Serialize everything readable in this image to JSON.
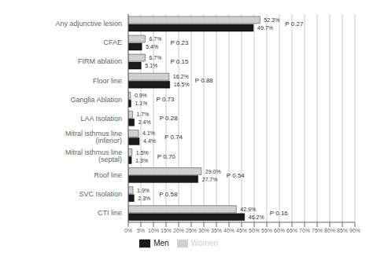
{
  "chart_data": {
    "type": "bar",
    "orientation": "horizontal",
    "categories": [
      "Any adjunctive lesion",
      "CFAE",
      "FIRM ablation",
      "Floor line",
      "Ganglia Ablation",
      "LAA Isolation",
      "Mitral isthmus line (inferior)",
      "Mitral isthmus line (septal)",
      "Roof line",
      "SVC Isolation",
      "CTI line"
    ],
    "series": [
      {
        "name": "Women",
        "color": "#d0d0d0",
        "values": [
          52.3,
          6.7,
          6.7,
          16.2,
          0.9,
          1.7,
          4.1,
          1.5,
          29.0,
          1.9,
          42.9
        ],
        "value_labels": [
          "52.3%",
          "6.7%",
          "6.7%",
          "16.2%",
          "0.9%",
          "1.7%",
          "4.1%",
          "1.5%",
          "29.0%",
          "1.9%",
          "42.9%"
        ]
      },
      {
        "name": "Men",
        "color": "#1a1a1a",
        "values": [
          49.7,
          5.4,
          5.1,
          16.5,
          1.1,
          2.4,
          4.4,
          1.3,
          27.7,
          2.3,
          46.2
        ],
        "value_labels": [
          "49.7%",
          "5.4%",
          "5.1%",
          "16.5%",
          "1.1%",
          "2.4%",
          "4.4%",
          "1.3%",
          "27.7%",
          "2.3%",
          "46.2%"
        ]
      }
    ],
    "annotations": [
      "P 0.27",
      "P 0.23",
      "P 0.15",
      "P 0.88",
      "P 0.73",
      "P 0.28",
      "P 0.74",
      "P 0.70",
      "P 0.54",
      "P 0.58",
      "P 0.16"
    ],
    "xlim": [
      0,
      90
    ],
    "xticks": [
      {
        "value": 0,
        "label": "0%"
      },
      {
        "value": 5,
        "label": "5%"
      },
      {
        "value": 10,
        "label": "10%"
      },
      {
        "value": 15,
        "label": "15%"
      },
      {
        "value": 20,
        "label": "20%"
      },
      {
        "value": 25,
        "label": "25%"
      },
      {
        "value": 30,
        "label": "30%"
      },
      {
        "value": 35,
        "label": "35%"
      },
      {
        "value": 40,
        "label": "40%"
      },
      {
        "value": 45,
        "label": "45%"
      },
      {
        "value": 50,
        "label": "50%"
      },
      {
        "value": 55,
        "label": "55%"
      },
      {
        "value": 60,
        "label": "60%"
      },
      {
        "value": 65,
        "label": "65%"
      },
      {
        "value": 70,
        "label": "70%"
      },
      {
        "value": 75,
        "label": "75%"
      },
      {
        "value": 80,
        "label": "80%"
      },
      {
        "value": 85,
        "label": "85%"
      },
      {
        "value": 90,
        "label": "90%"
      }
    ],
    "grid": true,
    "legend": "bottom",
    "data_labels": true
  }
}
